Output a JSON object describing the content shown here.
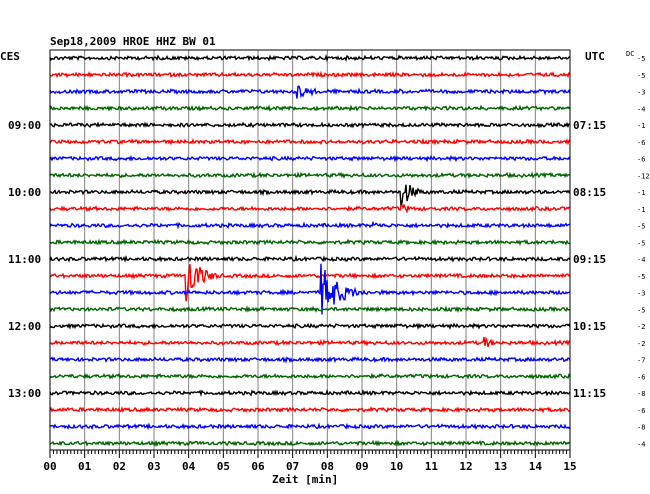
{
  "header": {
    "title": "Sep18,2009   HROE HHZ BW 01",
    "left_label": "CES",
    "right_label": "UTC",
    "dc_label": "DC"
  },
  "chart_data": {
    "type": "line",
    "title": "Sep18,2009   HROE HHZ BW 01",
    "xlabel": "Zeit [min]",
    "xlim": [
      0,
      15
    ],
    "x_ticks": [
      "00",
      "01",
      "02",
      "03",
      "04",
      "05",
      "06",
      "07",
      "08",
      "09",
      "10",
      "11",
      "12",
      "13",
      "14",
      "15"
    ],
    "grid": true,
    "trace_colors": [
      "#000000",
      "#ff0000",
      "#0000ff",
      "#006400"
    ],
    "rows": 24,
    "left_time_labels": [
      {
        "row": 4,
        "text": "09:00"
      },
      {
        "row": 8,
        "text": "10:00"
      },
      {
        "row": 12,
        "text": "11:00"
      },
      {
        "row": 16,
        "text": "12:00"
      },
      {
        "row": 20,
        "text": "13:00"
      }
    ],
    "right_time_labels": [
      {
        "row": 4,
        "text": "07:15"
      },
      {
        "row": 8,
        "text": "08:15"
      },
      {
        "row": 12,
        "text": "09:15"
      },
      {
        "row": 16,
        "text": "10:15"
      },
      {
        "row": 20,
        "text": "11:15"
      }
    ],
    "dc_offsets": [
      "-5",
      "-5",
      "-3",
      "-4",
      "-1",
      "-6",
      "-6",
      "-12",
      "-1",
      "-1",
      "-5",
      "-5",
      "-4",
      "-5",
      "-3",
      "-5",
      "-2",
      "-2",
      "-7",
      "-6",
      "-8",
      "-6",
      "-8",
      "-4"
    ],
    "events": [
      {
        "row": 2,
        "minute": 7.1,
        "amplitude": 8,
        "duration": 1.5
      },
      {
        "row": 2,
        "minute": 10.0,
        "amplitude": 4,
        "duration": 0.6
      },
      {
        "row": 8,
        "minute": 10.1,
        "amplitude": 18,
        "duration": 1.0
      },
      {
        "row": 9,
        "minute": 10.1,
        "amplitude": 6,
        "duration": 1.0
      },
      {
        "row": 10,
        "minute": 9.3,
        "amplitude": 4,
        "duration": 1.2
      },
      {
        "row": 13,
        "minute": 3.9,
        "amplitude": 30,
        "duration": 1.2
      },
      {
        "row": 14,
        "minute": 7.8,
        "amplitude": 30,
        "duration": 1.6
      },
      {
        "row": 16,
        "minute": 10.0,
        "amplitude": 4,
        "duration": 0.6
      },
      {
        "row": 17,
        "minute": 12.5,
        "amplitude": 8,
        "duration": 0.7
      }
    ]
  }
}
